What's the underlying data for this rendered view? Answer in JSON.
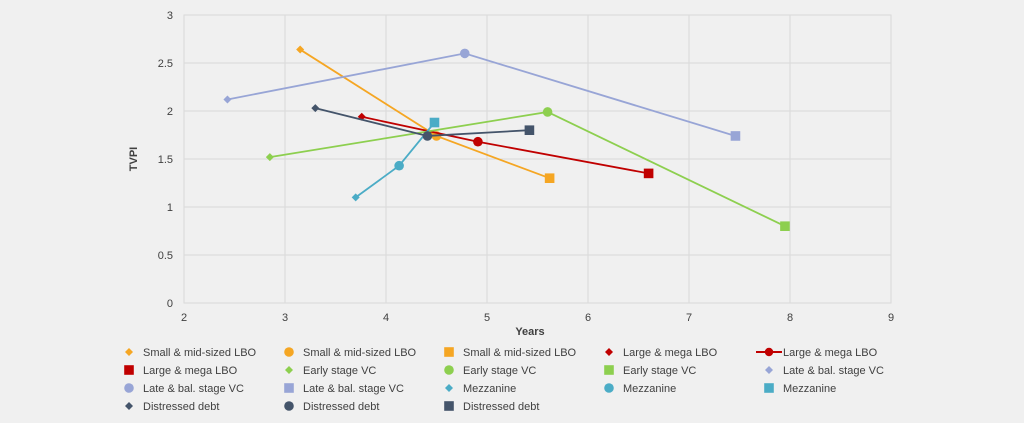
{
  "chart_data": {
    "type": "scatter",
    "title": "",
    "xlabel": "Years",
    "ylabel": "TVPI",
    "xlim": [
      2,
      9
    ],
    "ylim": [
      0,
      3
    ],
    "x_ticks": [
      2,
      3,
      4,
      5,
      6,
      7,
      8,
      9
    ],
    "y_ticks": [
      0,
      0.5,
      1,
      1.5,
      2,
      2.5,
      3
    ],
    "x_tick_labels": [
      "2",
      "3",
      "4",
      "5",
      "6",
      "7",
      "8",
      "9"
    ],
    "y_tick_labels": [
      "0",
      "0.5",
      "1",
      "1.5",
      "2",
      "2.5",
      "3"
    ],
    "grid": true,
    "legend_position": "bottom",
    "groups": [
      {
        "name": "Small & mid-sized LBO",
        "color": "#f5a623",
        "line": true,
        "points": [
          {
            "x": 3.15,
            "y": 2.64,
            "marker": "diamond"
          },
          {
            "x": 4.5,
            "y": 1.74,
            "marker": "circle"
          },
          {
            "x": 5.62,
            "y": 1.3,
            "marker": "square"
          }
        ]
      },
      {
        "name": "Large & mega LBO",
        "color": "#c00000",
        "line": true,
        "points": [
          {
            "x": 3.76,
            "y": 1.94,
            "marker": "diamond"
          },
          {
            "x": 4.91,
            "y": 1.68,
            "marker": "circle"
          },
          {
            "x": 6.6,
            "y": 1.35,
            "marker": "square"
          }
        ]
      },
      {
        "name": "Early stage VC",
        "color": "#8dcf4f",
        "line": true,
        "points": [
          {
            "x": 2.85,
            "y": 1.52,
            "marker": "diamond"
          },
          {
            "x": 5.6,
            "y": 1.99,
            "marker": "circle"
          },
          {
            "x": 7.95,
            "y": 0.8,
            "marker": "square"
          }
        ]
      },
      {
        "name": "Late & bal. stage VC",
        "color": "#98a5d6",
        "line": true,
        "points": [
          {
            "x": 2.43,
            "y": 2.12,
            "marker": "diamond"
          },
          {
            "x": 4.78,
            "y": 2.6,
            "marker": "circle"
          },
          {
            "x": 7.46,
            "y": 1.74,
            "marker": "square"
          }
        ]
      },
      {
        "name": "Mezzanine",
        "color": "#4bacc6",
        "line": true,
        "points": [
          {
            "x": 3.7,
            "y": 1.1,
            "marker": "diamond"
          },
          {
            "x": 4.13,
            "y": 1.43,
            "marker": "circle"
          },
          {
            "x": 4.48,
            "y": 1.88,
            "marker": "square"
          }
        ]
      },
      {
        "name": "Distressed debt",
        "color": "#44546a",
        "line": true,
        "points": [
          {
            "x": 3.3,
            "y": 2.03,
            "marker": "diamond"
          },
          {
            "x": 4.41,
            "y": 1.74,
            "marker": "circle"
          },
          {
            "x": 5.42,
            "y": 1.8,
            "marker": "square"
          }
        ]
      }
    ],
    "legend": [
      {
        "label": "Small & mid-sized LBO",
        "color": "#f5a623",
        "marker": "diamond"
      },
      {
        "label": "Small & mid-sized LBO",
        "color": "#f5a623",
        "marker": "circle"
      },
      {
        "label": "Small & mid-sized LBO",
        "color": "#f5a623",
        "marker": "square"
      },
      {
        "label": "Large & mega LBO",
        "color": "#c00000",
        "marker": "diamond"
      },
      {
        "label": "Large & mega LBO",
        "color": "#c00000",
        "marker": "circle-line"
      },
      {
        "label": "Large & mega LBO",
        "color": "#c00000",
        "marker": "square"
      },
      {
        "label": "Early stage VC",
        "color": "#8dcf4f",
        "marker": "diamond"
      },
      {
        "label": "Early stage VC",
        "color": "#8dcf4f",
        "marker": "circle"
      },
      {
        "label": "Early stage VC",
        "color": "#8dcf4f",
        "marker": "square"
      },
      {
        "label": "Late & bal. stage VC",
        "color": "#98a5d6",
        "marker": "diamond"
      },
      {
        "label": "Late & bal. stage VC",
        "color": "#98a5d6",
        "marker": "circle"
      },
      {
        "label": "Late & bal. stage VC",
        "color": "#98a5d6",
        "marker": "square"
      },
      {
        "label": "Mezzanine",
        "color": "#4bacc6",
        "marker": "diamond"
      },
      {
        "label": "Mezzanine",
        "color": "#4bacc6",
        "marker": "circle"
      },
      {
        "label": "Mezzanine",
        "color": "#4bacc6",
        "marker": "square"
      },
      {
        "label": "Distressed debt",
        "color": "#44546a",
        "marker": "diamond"
      },
      {
        "label": "Distressed debt",
        "color": "#44546a",
        "marker": "circle"
      },
      {
        "label": "Distressed debt",
        "color": "#44546a",
        "marker": "square"
      }
    ]
  }
}
